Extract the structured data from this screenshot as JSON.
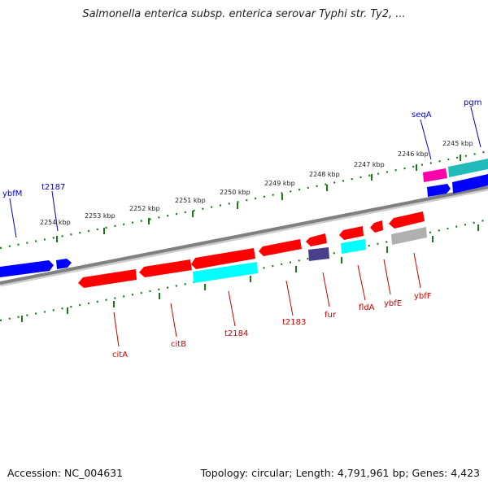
{
  "title": "Salmonella enterica subsp. enterica serovar Typhi str. Ty2, ...",
  "footer": {
    "accession": "Accession: NC_004631",
    "stats": "Topology: circular; Length: 4,791,961 bp; Genes: 4,423"
  },
  "colors": {
    "forward_label": "#0000cc",
    "reverse_label": "#cc0000",
    "backbone": "#808080",
    "tick": "#1a7a1a",
    "red_gene": "#ff0000",
    "blue_gene": "#0000ff",
    "cyan_gene": "#00ffff",
    "magenta_gene": "#ff00aa",
    "teal_gene": "#22bbbb",
    "purple_gene": "#4a3f8a",
    "gray_gene": "#b0b0b0"
  },
  "scale_labels": [
    "2254 kbp",
    "2253 kbp",
    "2252 kbp",
    "2251 kbp",
    "2250 kbp",
    "2249 kbp",
    "2248 kbp",
    "2247 kbp",
    "2246 kbp",
    "2245 kbp"
  ],
  "forward_gene_labels": [
    "ybfM",
    "t2187",
    "seqA",
    "pgm"
  ],
  "reverse_gene_labels": [
    "citA",
    "citB",
    "t2184",
    "t2183",
    "fur",
    "fldA",
    "ybfE",
    "ybfF"
  ]
}
